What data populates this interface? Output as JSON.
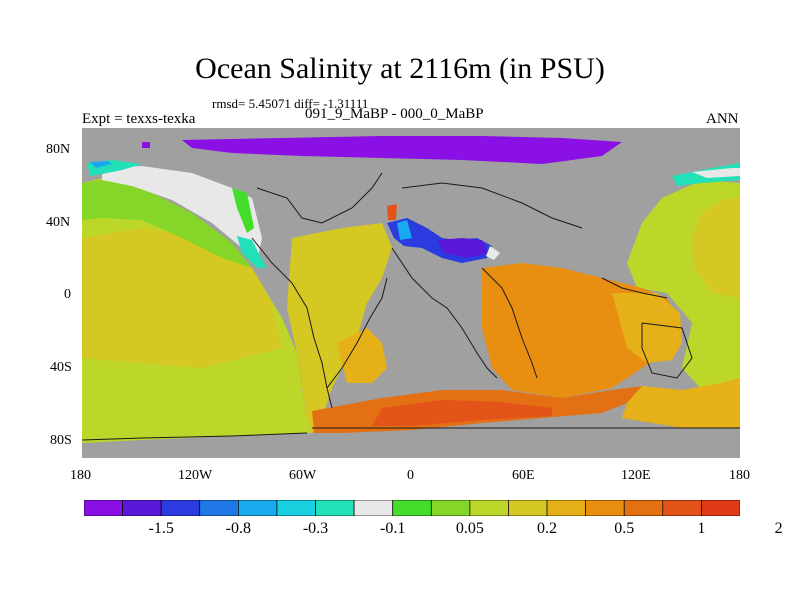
{
  "title": "Ocean Salinity at 2116m (in PSU)",
  "stats": "rmsd= 5.45071 diff= -1.31111",
  "subtitle": "091_9_MaBP - 000_0_MaBP",
  "left_label": "Expt = texxs-texka",
  "right_label": "ANN",
  "lon_ticks": [
    "180",
    "120W",
    "60W",
    "0",
    "60E",
    "120E",
    "180"
  ],
  "lat_ticks": [
    "80N",
    "40N",
    "0",
    "40S",
    "80S"
  ],
  "colorbar": {
    "colors": [
      "#8a10e6",
      "#5a18d8",
      "#2a3ce0",
      "#1f78e6",
      "#19a9ee",
      "#18d0e0",
      "#22e0b8",
      "#e8e8e8",
      "#44dd2a",
      "#86d629",
      "#bcd62a",
      "#d6c822",
      "#e6b018",
      "#e88e10",
      "#e47014",
      "#e25418",
      "#e03a16"
    ],
    "labels": [
      "-1.5",
      "-0.8",
      "-0.3",
      "-0.1",
      "0.05",
      "0.2",
      "0.5",
      "1",
      "2"
    ]
  },
  "palette": {
    "land": "#a0a0a0",
    "coast": "#1a1a1a"
  }
}
